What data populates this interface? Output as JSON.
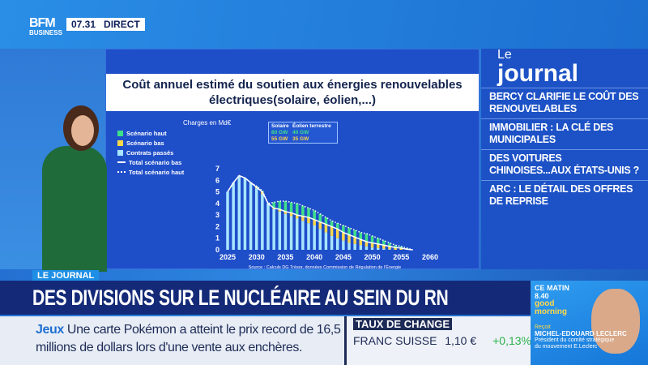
{
  "header": {
    "logo": "BFM BUSINESS",
    "logo_line1": "BFM",
    "logo_line2": "BUSINESS",
    "time": "07.31",
    "live": "DIRECT"
  },
  "chart_data": {
    "type": "bar",
    "title": "Coût annuel estimé du soutien aux énergies renouvelables électriques(solaire, éolien,...)",
    "ylabel": "Charges en Md€",
    "ylim": [
      0,
      7
    ],
    "yticks": [
      "0",
      "1",
      "2",
      "3",
      "4",
      "5",
      "6",
      "7"
    ],
    "xticks": [
      "2025",
      "2030",
      "2035",
      "2040",
      "2045",
      "2050",
      "2055",
      "2060"
    ],
    "x": [
      2025,
      2026,
      2027,
      2028,
      2029,
      2030,
      2031,
      2032,
      2033,
      2034,
      2035,
      2036,
      2037,
      2038,
      2039,
      2040,
      2041,
      2042,
      2043,
      2044,
      2045,
      2046,
      2047,
      2048,
      2049,
      2050,
      2051,
      2052,
      2053,
      2054,
      2055,
      2056,
      2057
    ],
    "legend": [
      "Scénario haut",
      "Scénario bas",
      "Contrats passés",
      "Total scénario bas",
      "Total scénario haut"
    ],
    "series": [
      {
        "name": "Contrats passés",
        "color": "#a8e6ff",
        "values": [
          5,
          5.8,
          6.4,
          6.2,
          5.8,
          5.3,
          4.8,
          4.0,
          3.5,
          3.3,
          3.1,
          2.9,
          2.7,
          2.5,
          2.3,
          2.1,
          1.8,
          1.5,
          1.2,
          1.0,
          0.8,
          0.6,
          0.5,
          0.4,
          0.3,
          0.2,
          0.15,
          0.1,
          0.05,
          0,
          0,
          0,
          0
        ]
      },
      {
        "name": "Total scénario bas",
        "color": "#ffd84a",
        "values": [
          5,
          5.8,
          6.4,
          6.2,
          5.8,
          5.4,
          5.0,
          4.0,
          3.6,
          3.5,
          3.3,
          3.2,
          3.0,
          2.9,
          2.8,
          2.6,
          2.4,
          2.2,
          2.0,
          1.8,
          1.5,
          1.3,
          1.1,
          0.9,
          0.7,
          0.6,
          0.5,
          0.4,
          0.3,
          0.2,
          0.15,
          0.05,
          0
        ]
      },
      {
        "name": "Total scénario haut",
        "color": "#3ee08a",
        "values": [
          5,
          5.8,
          6.4,
          6.2,
          5.8,
          5.5,
          5.1,
          4.0,
          4.1,
          4.2,
          4.2,
          4.1,
          4.0,
          3.8,
          3.6,
          3.4,
          3.1,
          2.8,
          2.5,
          2.3,
          2.1,
          1.9,
          1.7,
          1.5,
          1.4,
          1.2,
          1.0,
          0.8,
          0.6,
          0.4,
          0.3,
          0.15,
          0
        ]
      }
    ],
    "source": "Source : Calculs DG Trésor, données Commission de Régulation de l'Énergie",
    "capacity": {
      "col1": "Solaire",
      "col2": "Éolien terrestre",
      "high": [
        "80 GW",
        "40 GW"
      ],
      "low": [
        "55 GW",
        "35 GW"
      ]
    }
  },
  "journal": {
    "le": "Le",
    "title": "journal",
    "items": [
      "BERCY CLARIFIE LE COÛT DES RENOUVELABLES",
      "IMMOBILIER : LA CLÉ DES MUNICIPALES",
      "DES VOITURES CHINOISES...AUX ÉTATS-UNIS ?",
      "ARC : LE DÉTAIL DES OFFRES DE REPRISE"
    ]
  },
  "lower": {
    "tag": "LE JOURNAL",
    "headline": "DES DIVISIONS SUR LE NUCLÉAIRE AU SEIN DU RN",
    "ticker_label": "Jeux",
    "ticker_text": "Une carte Pokémon a atteint le prix record de 16,5 millions de dollars lors d'une vente aux enchères."
  },
  "fx": {
    "header": "TAUX DE CHANGE",
    "name": "FRANC SUISSE",
    "value": "1,10 €",
    "change": "+0,13%",
    "change_color": "#2bb24c"
  },
  "promo": {
    "when": "CE MATIN",
    "time": "8.40",
    "show": "good morning",
    "label": "Reçoit",
    "guest": "MICHEL-EDOUARD LECLERC",
    "role": "Président du comité stratégique du mouvement E.Leclerc"
  }
}
